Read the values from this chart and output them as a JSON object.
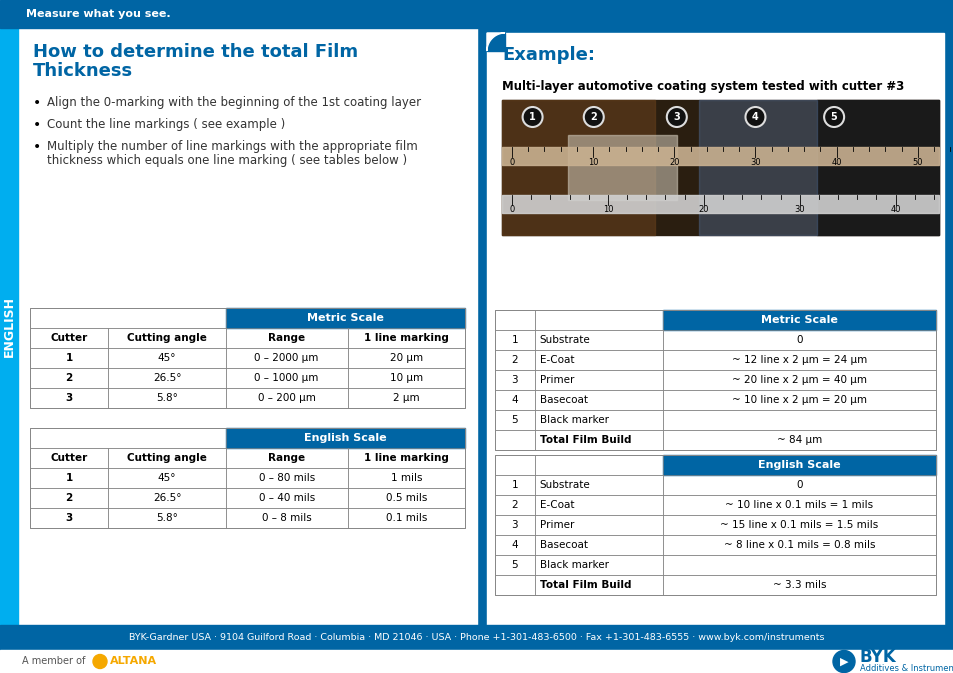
{
  "top_bar_color": "#0065A4",
  "top_bar_text": "Measure what you see.",
  "top_bar_text_color": "#FFFFFF",
  "side_bar_color": "#00AEEF",
  "side_bar_text": "ENGLISH",
  "title_color": "#0065A4",
  "title_text_line1": "How to determine the total Film",
  "title_text_line2": "Thickness",
  "example_title": "Example:",
  "bullet_points": [
    "Align the 0-marking with the beginning of the 1st coating layer",
    "Count the line markings ( see example )",
    "Multiply the number of line markings with the appropriate film\nthickness which equals one line marking ( see tables below )"
  ],
  "example_subtitle": "Multi-layer automotive coating system tested with cutter #3",
  "metric_table_header": "Metric Scale",
  "metric_table_cols": [
    "Cutter",
    "Cutting angle",
    "Range",
    "1 line marking"
  ],
  "metric_table_rows": [
    [
      "1",
      "45°",
      "0 – 2000 μm",
      "20 μm"
    ],
    [
      "2",
      "26.5°",
      "0 – 1000 μm",
      "10 μm"
    ],
    [
      "3",
      "5.8°",
      "0 – 200 μm",
      "2 μm"
    ]
  ],
  "english_table_header": "English Scale",
  "english_table_cols": [
    "Cutter",
    "Cutting angle",
    "Range",
    "1 line marking"
  ],
  "english_table_rows": [
    [
      "1",
      "45°",
      "0 – 80 mils",
      "1 mils"
    ],
    [
      "2",
      "26.5°",
      "0 – 40 mils",
      "0.5 mils"
    ],
    [
      "3",
      "5.8°",
      "0 – 8 mils",
      "0.1 mils"
    ]
  ],
  "metric_right_header": "Metric Scale",
  "metric_right_rows": [
    [
      "1",
      "Substrate",
      "0"
    ],
    [
      "2",
      "E-Coat",
      "~ 12 line x 2 μm = 24 μm"
    ],
    [
      "3",
      "Primer",
      "~ 20 line x 2 μm = 40 μm"
    ],
    [
      "4",
      "Basecoat",
      "~ 10 line x 2 μm = 20 μm"
    ],
    [
      "5",
      "Black marker",
      ""
    ],
    [
      "",
      "Total Film Build",
      "~ 84 μm"
    ]
  ],
  "english_right_header": "English Scale",
  "english_right_rows": [
    [
      "1",
      "Substrate",
      "0"
    ],
    [
      "2",
      "E-Coat",
      "~ 10 line x 0.1 mils = 1 mils"
    ],
    [
      "3",
      "Primer",
      "~ 15 line x 0.1 mils = 1.5 mils"
    ],
    [
      "4",
      "Basecoat",
      "~ 8 line x 0.1 mils = 0.8 mils"
    ],
    [
      "5",
      "Black marker",
      ""
    ],
    [
      "",
      "Total Film Build",
      "~ 3.3 mils"
    ]
  ],
  "footer_bar_color": "#0065A4",
  "footer_text": "BYK-Gardner USA · 9104 Guilford Road · Columbia · MD 21046 · USA · Phone +1-301-483-6500 · Fax +1-301-483-6555 · www.byk.com/instruments",
  "footer_text_color": "#FFFFFF",
  "bottom_altana_color": "#F5A800",
  "bottom_byk_color": "#0065A4",
  "table_header_color": "#0065A4",
  "table_header_text_color": "#FFFFFF",
  "bg_color": "#FFFFFF",
  "right_bg_color": "#0065A4",
  "right_content_bg": "#FFFFFF"
}
